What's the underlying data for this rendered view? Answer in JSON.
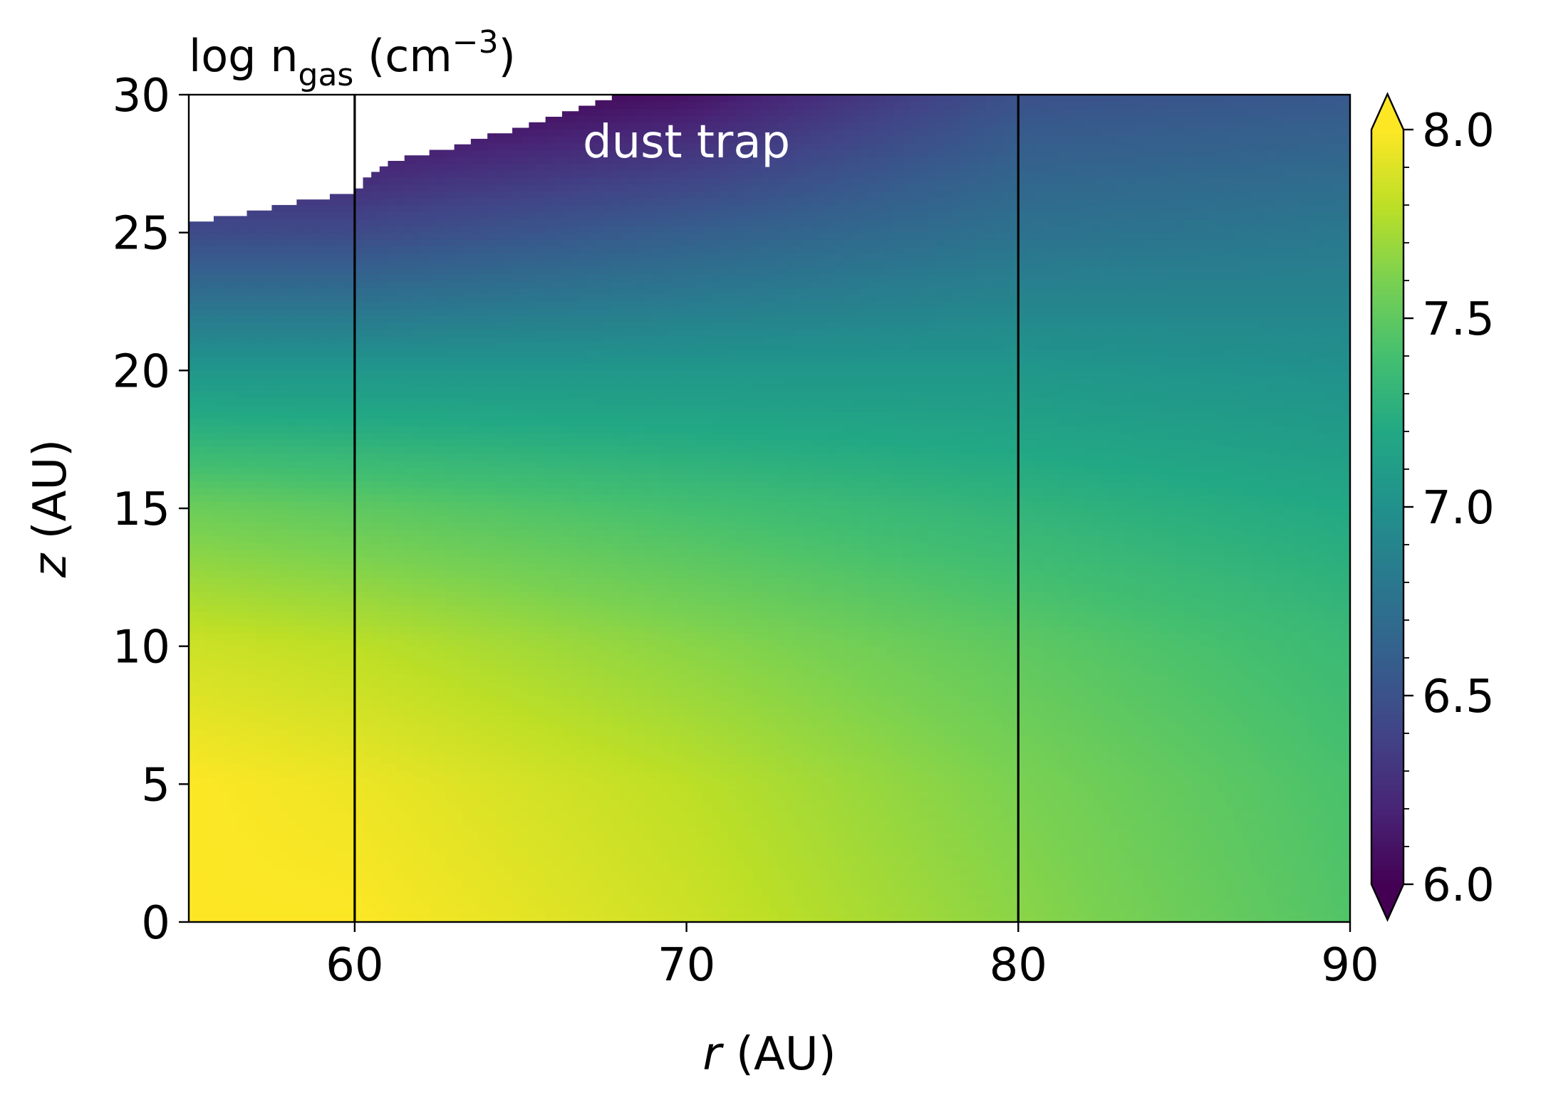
{
  "chart_data": {
    "type": "heatmap",
    "title": {
      "prefix": "log n",
      "subscript": "gas",
      "unit_open": " (cm",
      "superscript": "−3",
      "unit_close": ")"
    },
    "xlabel": {
      "symbol": "r",
      "unit": " (AU)"
    },
    "ylabel": {
      "symbol": "z",
      "unit": " (AU)"
    },
    "xlim": [
      55,
      90
    ],
    "ylim": [
      0,
      30
    ],
    "xticks": [
      60,
      70,
      80,
      90
    ],
    "xtick_labels": [
      "60",
      "70",
      "80",
      "90"
    ],
    "yticks": [
      0,
      5,
      10,
      15,
      20,
      25,
      30
    ],
    "ytick_labels": [
      "0",
      "5",
      "10",
      "15",
      "20",
      "25",
      "30"
    ],
    "grid": false,
    "colormap": "viridis",
    "colorbar": {
      "range": [
        6.0,
        8.0
      ],
      "extend": "both",
      "major_ticks": [
        6.0,
        6.5,
        7.0,
        7.5,
        8.0
      ],
      "major_tick_labels": [
        "6.0",
        "6.5",
        "7.0",
        "7.5",
        "8.0"
      ],
      "minor_step": 0.1
    },
    "vertical_lines": [
      {
        "x": 60,
        "color": "#000000"
      },
      {
        "x": 80,
        "color": "#000000"
      }
    ],
    "annotations": [
      {
        "text": "dust trap",
        "x": 70,
        "y": 28.3,
        "color": "#ffffff"
      }
    ],
    "field_samples": {
      "description_of_axes": "log10 gas number density at (r, z)",
      "z_values": [
        0,
        5,
        10,
        15,
        20,
        25,
        30
      ],
      "r_55": [
        8.0,
        8.0,
        7.85,
        7.55,
        7.05,
        6.45,
        null
      ],
      "r_60": [
        8.0,
        7.95,
        7.8,
        7.5,
        7.05,
        6.45,
        null
      ],
      "r_70": [
        7.85,
        7.8,
        7.65,
        7.4,
        7.05,
        6.6,
        6.1
      ],
      "r_80": [
        7.65,
        7.6,
        7.5,
        7.3,
        7.05,
        6.75,
        6.5
      ],
      "r_90": [
        7.45,
        7.42,
        7.35,
        7.2,
        7.0,
        6.8,
        6.55
      ]
    },
    "data_boundary": [
      {
        "r": 55.0,
        "z": 25.3
      },
      {
        "r": 60.0,
        "z": 26.5
      },
      {
        "r": 61.0,
        "z": 27.6
      },
      {
        "r": 63.0,
        "z": 28.1
      },
      {
        "r": 66.0,
        "z": 29.2
      },
      {
        "r": 68.0,
        "z": 30.0
      }
    ]
  }
}
